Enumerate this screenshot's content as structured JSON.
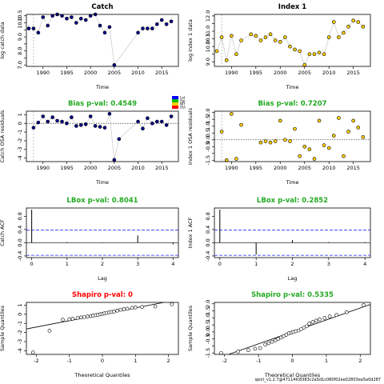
{
  "footer": "spict_v1.2.7@47114fc8383c2a5d1c080f02ee02803ea5a0d287",
  "legend": {
    "labels": [
      "Lat",
      "Apr",
      "NIT",
      "Oct"
    ],
    "colors": [
      "#0000ff",
      "#00c000",
      "#ffd000",
      "#ff0000"
    ]
  },
  "chart_data": [
    {
      "id": "catch",
      "type": "scatter",
      "title": "Catch",
      "title_color": "#000000",
      "xlabel": "Time",
      "ylabel": "log catch data",
      "xlim": [
        1986.5,
        2018.5
      ],
      "ylim": [
        6.9,
        10.6
      ],
      "xticks": [
        1990,
        1995,
        2000,
        2005,
        2010,
        2015
      ],
      "yticks": [
        7.0,
        7.5,
        8.0,
        8.5,
        9.0,
        9.5,
        10.0,
        10.5
      ],
      "yticklabels": [
        "7.0",
        "",
        "8.0",
        "",
        "9.0",
        "",
        "10.0",
        "10.5"
      ],
      "vline": 1988,
      "point_fill": "#00008b",
      "connect": true,
      "x": [
        1987,
        1988,
        1989,
        1990,
        1991,
        1992,
        1993,
        1994,
        1995,
        1996,
        1997,
        1998,
        1999,
        2000,
        2001,
        2002,
        2003,
        2004,
        2005,
        2010,
        2011,
        2012,
        2013,
        2014,
        2015,
        2016,
        2017
      ],
      "y": [
        9.6,
        9.6,
        9.3,
        10.4,
        9.8,
        10.5,
        10.6,
        10.5,
        10.3,
        10.4,
        10.0,
        10.3,
        10.2,
        10.5,
        10.6,
        9.8,
        9.3,
        9.7,
        7.0,
        9.3,
        9.6,
        9.6,
        9.6,
        9.9,
        10.2,
        9.9,
        10.1
      ]
    },
    {
      "id": "index",
      "type": "scatter",
      "title": "Index 1",
      "title_color": "#000000",
      "xlabel": "Time",
      "ylabel": "log index 1 data",
      "xlim": [
        1986.5,
        2018.5
      ],
      "ylim": [
        8.7,
        12.1
      ],
      "xticks": [
        1990,
        1995,
        2000,
        2005,
        2010,
        2015
      ],
      "yticks": [
        9.0,
        9.5,
        10.0,
        10.5,
        11.0,
        11.5,
        12.0
      ],
      "yticklabels": [
        "9.0",
        "",
        "10.0",
        "10.5",
        "11.0",
        "",
        "12.0"
      ],
      "vline": 1988,
      "point_fill": "#ffd000",
      "connect": true,
      "x": [
        1987,
        1988,
        1989,
        1990,
        1991,
        1992,
        1994,
        1995,
        1996,
        1997,
        1998,
        1999,
        2000,
        2001,
        2002,
        2003,
        2004,
        2005,
        2006,
        2007,
        2008,
        2009,
        2010,
        2011,
        2012,
        2013,
        2014,
        2015,
        2016,
        2017
      ],
      "y": [
        9.7,
        10.6,
        9.1,
        10.7,
        9.5,
        10.4,
        10.8,
        10.7,
        10.4,
        10.6,
        10.8,
        10.4,
        10.3,
        10.6,
        10.0,
        9.8,
        9.7,
        8.8,
        9.5,
        9.5,
        9.6,
        9.5,
        10.6,
        11.6,
        10.6,
        10.9,
        11.3,
        11.7,
        11.6,
        11.3
      ]
    },
    {
      "id": "catch-osa",
      "type": "scatter",
      "title": "Bias p-val: 0.4549",
      "title_color": "#22aa22",
      "xlabel": "Time",
      "ylabel": "Catch OSA residuals",
      "xlim": [
        1986.5,
        2018.5
      ],
      "ylim": [
        -4.4,
        1.4
      ],
      "xticks": [
        1990,
        1995,
        2000,
        2005,
        2010,
        2015
      ],
      "yticks": [
        -4,
        -3,
        -2,
        -1,
        0,
        1
      ],
      "yticklabels": [
        "-4",
        "-3",
        "-2",
        "-1",
        "0",
        "1"
      ],
      "vline": 1988,
      "hline": 0,
      "point_fill": "#00008b",
      "connect": true,
      "x": [
        1988,
        1989,
        1990,
        1991,
        1992,
        1993,
        1994,
        1995,
        1996,
        1997,
        1998,
        1999,
        2000,
        2001,
        2002,
        2003,
        2004,
        2005,
        2006,
        2010,
        2011,
        2012,
        2013,
        2014,
        2015,
        2016,
        2017
      ],
      "y": [
        -0.5,
        0.1,
        0.8,
        0.2,
        0.7,
        0.3,
        0.2,
        0.0,
        0.7,
        -0.3,
        -0.2,
        -0.1,
        0.8,
        -0.3,
        -0.4,
        -0.5,
        1.1,
        -4.2,
        -1.8,
        0.2,
        -0.6,
        0.6,
        0.0,
        0.2,
        0.2,
        -0.2,
        0.8
      ]
    },
    {
      "id": "index-osa",
      "type": "scatter",
      "title": "Bias p-val: 0.7207",
      "title_color": "#22aa22",
      "xlabel": "Time",
      "ylabel": "Index 1 OSA residuals",
      "xlim": [
        1986.5,
        2018.5
      ],
      "ylim": [
        -1.6,
        2.1
      ],
      "xticks": [
        1990,
        1995,
        2000,
        2005,
        2010,
        2015
      ],
      "yticks": [
        -1.5,
        -1.0,
        -0.5,
        0.0,
        0.5,
        1.0,
        1.5,
        2.0
      ],
      "yticklabels": [
        "-1.5",
        "",
        "-0.5",
        "0.0",
        "0.5",
        "1.0",
        "1.5",
        "2.0"
      ],
      "vline": 1988,
      "hline": 0,
      "point_fill": "#ffd000",
      "connect": false,
      "x": [
        1988,
        1989,
        1990,
        1991,
        1992,
        1996,
        1997,
        1998,
        1999,
        2000,
        2001,
        2002,
        2003,
        2004,
        2005,
        2006,
        2007,
        2008,
        2009,
        2010,
        2011,
        2012,
        2013,
        2014,
        2015,
        2016,
        2017
      ],
      "y": [
        0.6,
        -1.5,
        1.9,
        -1.4,
        1.1,
        -0.2,
        -0.1,
        -0.2,
        -0.1,
        1.4,
        0.0,
        -0.1,
        0.8,
        -1.2,
        -0.5,
        -0.7,
        -1.4,
        1.4,
        -0.4,
        -0.6,
        0.3,
        1.6,
        -1.2,
        0.6,
        1.4,
        0.9,
        0.2
      ]
    },
    {
      "id": "catch-acf",
      "type": "bar",
      "title": "LBox p-val: 0.8041",
      "title_color": "#22aa22",
      "xlabel": "Lag",
      "ylabel": "Catch ACF",
      "xlim": [
        -0.15,
        4.15
      ],
      "ylim": [
        -0.45,
        1.05
      ],
      "xticks": [
        0,
        1,
        2,
        3,
        4
      ],
      "yticks": [
        -0.4,
        0.0,
        0.4,
        0.8
      ],
      "yticklabels": [
        "-0.4",
        "0.0",
        "0.4",
        "0.8"
      ],
      "ci": 0.38,
      "x": [
        0,
        1,
        2,
        3,
        4
      ],
      "y": [
        1.0,
        0.02,
        -0.01,
        0.22,
        -0.05
      ]
    },
    {
      "id": "index-acf",
      "type": "bar",
      "title": "LBox p-val: 0.2852",
      "title_color": "#22aa22",
      "xlabel": "Lag",
      "ylabel": "Index 1 ACF",
      "xlim": [
        -0.15,
        4.15
      ],
      "ylim": [
        -0.45,
        1.05
      ],
      "xticks": [
        0,
        1,
        2,
        3,
        4
      ],
      "yticks": [
        -0.4,
        0.0,
        0.4,
        0.8
      ],
      "yticklabels": [
        "-0.4",
        "0.0",
        "0.4",
        "0.8"
      ],
      "ci": 0.38,
      "x": [
        0,
        1,
        2,
        3,
        4
      ],
      "y": [
        1.0,
        -0.36,
        0.08,
        0.02,
        0.02
      ]
    },
    {
      "id": "catch-qq",
      "type": "scatter",
      "title": "Shapiro p-val: 0",
      "title_color": "#ff0000",
      "xlabel": "Theoretical Quantiles",
      "ylabel": "Sample Quantiles",
      "xlim": [
        -2.3,
        2.3
      ],
      "ylim": [
        -4.4,
        1.3
      ],
      "xticks": [
        -2,
        -1,
        0,
        1,
        2
      ],
      "yticks": [
        -4,
        -3,
        -2,
        -1,
        0,
        1
      ],
      "yticklabels": [
        "-4",
        "-3",
        "-2",
        "-1",
        "0",
        "1"
      ],
      "point_fill": "#ffffff",
      "qq_line": {
        "intercept": 0.0,
        "slope": 0.7
      },
      "x": [
        -2.1,
        -1.6,
        -1.2,
        -1.0,
        -0.9,
        -0.75,
        -0.65,
        -0.55,
        -0.45,
        -0.35,
        -0.28,
        -0.2,
        -0.13,
        -0.06,
        0.0,
        0.06,
        0.13,
        0.2,
        0.28,
        0.35,
        0.45,
        0.55,
        0.65,
        0.75,
        0.9,
        1.0,
        1.2,
        1.6,
        2.1
      ],
      "y": [
        -4.2,
        -1.8,
        -0.6,
        -0.55,
        -0.5,
        -0.4,
        -0.35,
        -0.3,
        -0.25,
        -0.2,
        -0.15,
        -0.1,
        -0.05,
        0.0,
        0.05,
        0.1,
        0.15,
        0.2,
        0.25,
        0.3,
        0.4,
        0.5,
        0.55,
        0.6,
        0.7,
        0.75,
        0.8,
        0.85,
        1.1
      ]
    },
    {
      "id": "index-qq",
      "type": "scatter",
      "title": "Shapiro p-val: 0.5335",
      "title_color": "#22aa22",
      "xlabel": "Theoretical Quantiles",
      "ylabel": "Sample Quantiles",
      "xlim": [
        -2.3,
        2.3
      ],
      "ylim": [
        -1.6,
        2.1
      ],
      "xticks": [
        -2,
        -1,
        0,
        1,
        2
      ],
      "yticks": [
        -1.5,
        -1.0,
        -0.5,
        0.0,
        0.5,
        1.0,
        1.5,
        2.0
      ],
      "yticklabels": [
        "-1.5",
        "",
        "-0.5",
        "0.0",
        "0.5",
        "1.0",
        "1.5",
        "2.0"
      ],
      "point_fill": "#ffffff",
      "qq_line": {
        "intercept": 0.0,
        "slope": 0.85
      },
      "x": [
        -2.1,
        -1.6,
        -1.3,
        -1.1,
        -0.95,
        -0.8,
        -0.7,
        -0.6,
        -0.5,
        -0.42,
        -0.34,
        -0.26,
        -0.18,
        -0.1,
        -0.03,
        0.03,
        0.1,
        0.18,
        0.26,
        0.34,
        0.42,
        0.5,
        0.6,
        0.7,
        0.8,
        0.95,
        1.1,
        1.3,
        1.6,
        2.1
      ],
      "y": [
        -1.5,
        -1.4,
        -1.3,
        -1.2,
        -1.15,
        -0.9,
        -0.8,
        -0.7,
        -0.6,
        -0.5,
        -0.4,
        -0.3,
        -0.2,
        -0.1,
        -0.05,
        0.0,
        0.05,
        0.1,
        0.2,
        0.3,
        0.4,
        0.6,
        0.7,
        0.8,
        0.9,
        1.0,
        1.1,
        1.2,
        1.4,
        1.9
      ]
    }
  ]
}
